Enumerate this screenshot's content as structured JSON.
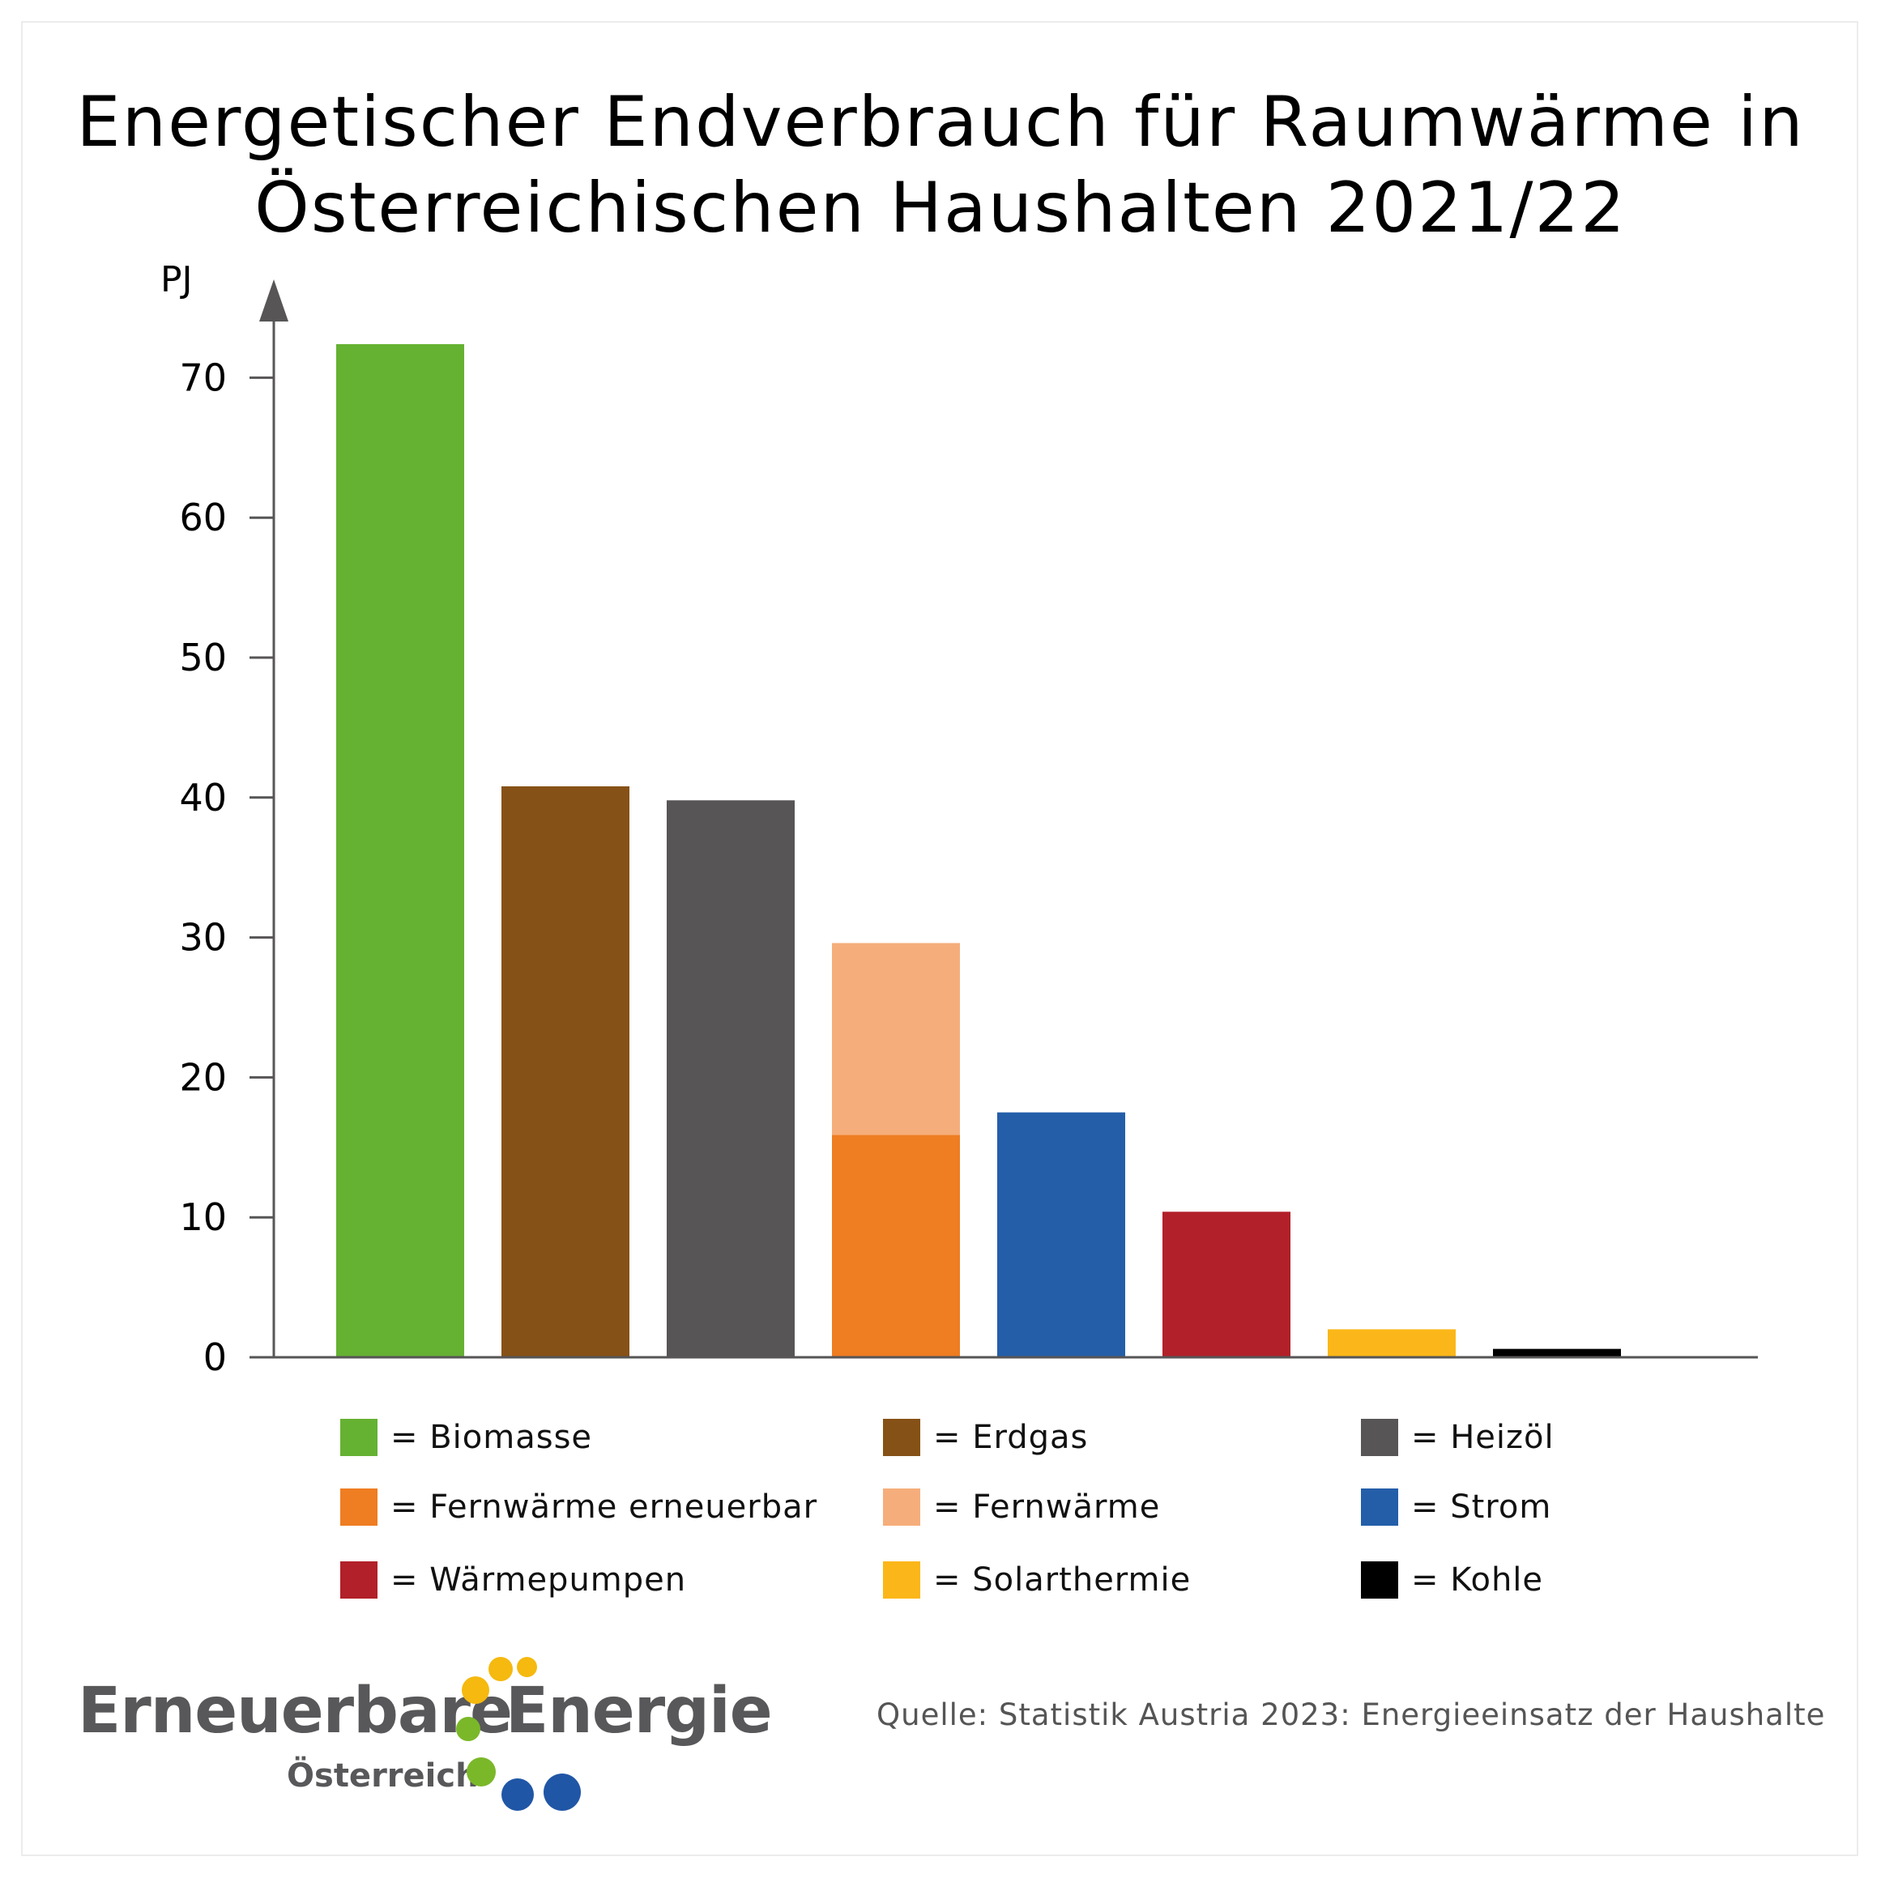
{
  "chart_data": {
    "type": "bar",
    "title": "Energetischer Endverbrauch für Raumwärme in Österreichischen Haushalten 2021/22",
    "title_lines": [
      "Energetischer Endverbrauch für Raumwärme in",
      "Österreichischen Haushalten 2021/22"
    ],
    "ylabel": "PJ",
    "xlabel": "",
    "ylim": [
      0,
      75
    ],
    "yticks": [
      0,
      10,
      20,
      30,
      40,
      50,
      60,
      70
    ],
    "stacked": true,
    "bars": [
      {
        "name": "Biomasse",
        "segments": [
          {
            "series": "Biomasse",
            "value": 72.4
          }
        ]
      },
      {
        "name": "Erdgas",
        "segments": [
          {
            "series": "Erdgas",
            "value": 40.8
          }
        ]
      },
      {
        "name": "Heizöl",
        "segments": [
          {
            "series": "Heizöl",
            "value": 39.8
          }
        ]
      },
      {
        "name": "Fernwärme",
        "segments": [
          {
            "series": "Fernwärme erneuerbar",
            "value": 15.9
          },
          {
            "series": "Fernwärme",
            "value": 13.7
          }
        ]
      },
      {
        "name": "Strom",
        "segments": [
          {
            "series": "Strom",
            "value": 17.5
          }
        ]
      },
      {
        "name": "Wärmepumpen",
        "segments": [
          {
            "series": "Wärmepumpen",
            "value": 10.4
          }
        ]
      },
      {
        "name": "Solarthermie",
        "segments": [
          {
            "series": "Solarthermie",
            "value": 2.0
          }
        ]
      },
      {
        "name": "Kohle",
        "segments": [
          {
            "series": "Kohle",
            "value": 0.6
          }
        ]
      }
    ],
    "legend": [
      {
        "label": "= Biomasse",
        "color": "#65b132"
      },
      {
        "label": "= Erdgas",
        "color": "#865116"
      },
      {
        "label": "= Heizöl",
        "color": "#575556"
      },
      {
        "label": "= Fernwärme erneuerbar",
        "color": "#ef7d22"
      },
      {
        "label": "= Fernwärme",
        "color": "#f5ae7b"
      },
      {
        "label": "= Strom",
        "color": "#245ea9"
      },
      {
        "label": "= Wärmepumpen",
        "color": "#b22029"
      },
      {
        "label": "= Solarthermie",
        "color": "#fbb719"
      },
      {
        "label": "= Kohle",
        "color": "#000000"
      }
    ],
    "colors": {
      "Biomasse": "#65b132",
      "Erdgas": "#865116",
      "Heizöl": "#575556",
      "Fernwärme erneuerbar": "#ef7d22",
      "Fernwärme": "#f5ae7b",
      "Strom": "#245ea9",
      "Wärmepumpen": "#b22029",
      "Solarthermie": "#fbb719",
      "Kohle": "#000000"
    },
    "axis_color": "#575556"
  },
  "logo": {
    "word1": "Erneuerbare",
    "word2": "Energie",
    "sub": "Österreich",
    "colors": {
      "yellow": "#f5b90f",
      "green": "#7ab829",
      "blue": "#2056a6",
      "text": "#58585a"
    }
  },
  "source": "Quelle: Statistik Austria 2023: Energieeinsatz der Haushalte"
}
